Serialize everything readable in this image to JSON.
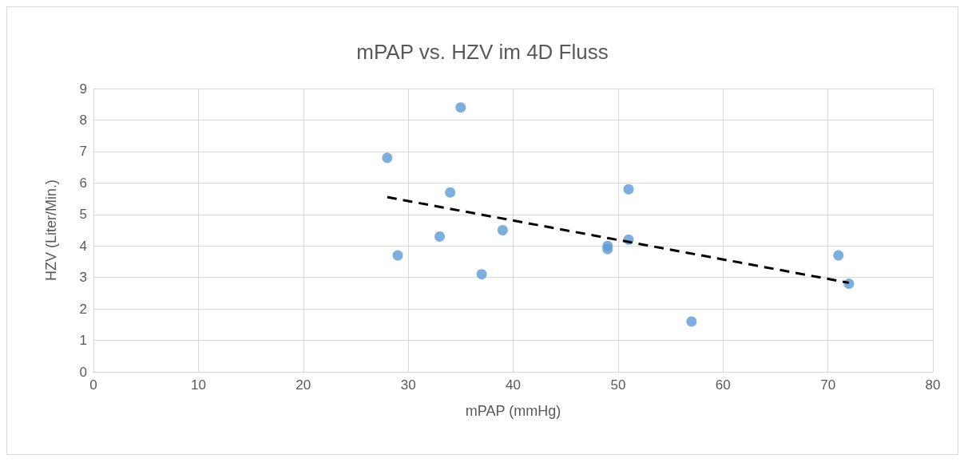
{
  "chart_data": {
    "type": "scatter",
    "title": "mPAP vs. HZV im 4D Fluss",
    "xlabel": "mPAP (mmHg)",
    "ylabel": "HZV (Liter/Min.)",
    "xlim": [
      0,
      80
    ],
    "xticks": [
      0,
      10,
      20,
      30,
      40,
      50,
      60,
      70,
      80
    ],
    "ylim": [
      0,
      9
    ],
    "yticks": [
      0,
      1,
      2,
      3,
      4,
      5,
      6,
      7,
      8,
      9
    ],
    "grid": true,
    "series": [
      {
        "marker": "circle",
        "color": "#5b9bd5",
        "x": [
          28,
          29,
          33,
          34,
          35,
          37,
          39,
          49,
          49,
          51,
          51,
          57,
          71,
          72
        ],
        "values": [
          6.8,
          3.7,
          4.3,
          5.7,
          8.4,
          3.1,
          4.5,
          4.0,
          3.9,
          5.8,
          4.2,
          1.6,
          3.7,
          2.8
        ]
      },
      {
        "type": "line",
        "marker": "none",
        "color": "#000000",
        "line_style": "dashed",
        "x": [
          28,
          72
        ],
        "values": [
          5.55,
          2.83
        ]
      }
    ]
  }
}
